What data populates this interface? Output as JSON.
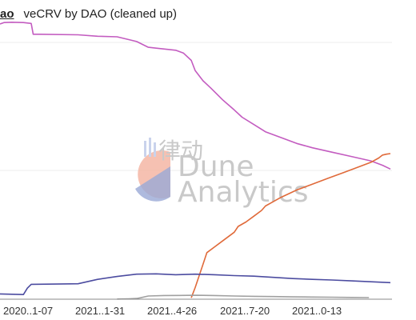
{
  "header": {
    "tab_label": "ao",
    "title": "veCRV by DAO (cleaned up)"
  },
  "watermark": {
    "line1": "Dune",
    "line2": "Analytics",
    "cjk": "律动",
    "colors": {
      "salmon": "#f4b6a5",
      "blue": "#9aa9d6",
      "text": "#c9c9c9"
    }
  },
  "chart_data": {
    "type": "line",
    "x_ticks": [
      "2020..1-07",
      "2021..1-31",
      "2021..4-26",
      "2021..7-20",
      "2021..0-13"
    ],
    "x_range": [
      0,
      100
    ],
    "y_range": [
      0,
      100
    ],
    "grid": true,
    "series": [
      {
        "color": "#c35cc0",
        "x": [
          0,
          1,
          3,
          6,
          8,
          8.5,
          10,
          20,
          25,
          30,
          35,
          38,
          40,
          45,
          47,
          49,
          50,
          52,
          54,
          57,
          60,
          62,
          65,
          68,
          72,
          76,
          80,
          85,
          90,
          95,
          98,
          100
        ],
        "y": [
          94.5,
          95,
          95.1,
          95,
          94.7,
          91,
          91,
          90.8,
          90.3,
          90.1,
          88.5,
          86.5,
          86.2,
          85.5,
          84.5,
          82,
          78.5,
          75,
          72.5,
          68.5,
          65,
          62.5,
          60,
          57.5,
          55.5,
          53.5,
          52,
          50.5,
          49,
          47.5,
          46,
          44.7
        ]
      },
      {
        "color": "#e06a3a",
        "x": [
          49,
          50,
          52,
          53,
          55,
          57,
          60,
          61,
          63,
          65,
          67,
          68,
          72,
          76,
          80,
          84,
          88,
          92,
          95,
          97,
          98,
          99,
          100
        ],
        "y": [
          0.5,
          4,
          12,
          16,
          18,
          20,
          23,
          25,
          26.5,
          28.5,
          30.5,
          32,
          35,
          37.5,
          39.5,
          41.5,
          43.5,
          45.5,
          47,
          48.5,
          49.5,
          49.8,
          50
        ]
      },
      {
        "color": "#4c4ca0",
        "x": [
          0,
          6,
          7,
          8,
          20,
          25,
          30,
          35,
          40,
          45,
          50,
          55,
          60,
          65,
          70,
          75,
          80,
          85,
          90,
          95,
          100
        ],
        "y": [
          1.8,
          1.6,
          3.8,
          5.1,
          5.3,
          6.8,
          7.8,
          8.6,
          8.7,
          8.4,
          8.6,
          8.4,
          8.1,
          7.9,
          7.5,
          7.1,
          6.8,
          6.6,
          6.3,
          6.0,
          5.7
        ]
      },
      {
        "color": "#a0a0a0",
        "x": [
          30,
          33,
          35,
          36,
          38,
          42,
          46,
          50,
          55,
          60,
          65,
          70,
          75,
          80,
          85,
          90,
          94.5
        ],
        "y": [
          0.05,
          0.15,
          0.25,
          0.5,
          1.1,
          1.25,
          1.3,
          1.35,
          1.25,
          1.1,
          1.0,
          0.9,
          0.8,
          0.75,
          0.7,
          0.6,
          0.55
        ]
      }
    ]
  }
}
